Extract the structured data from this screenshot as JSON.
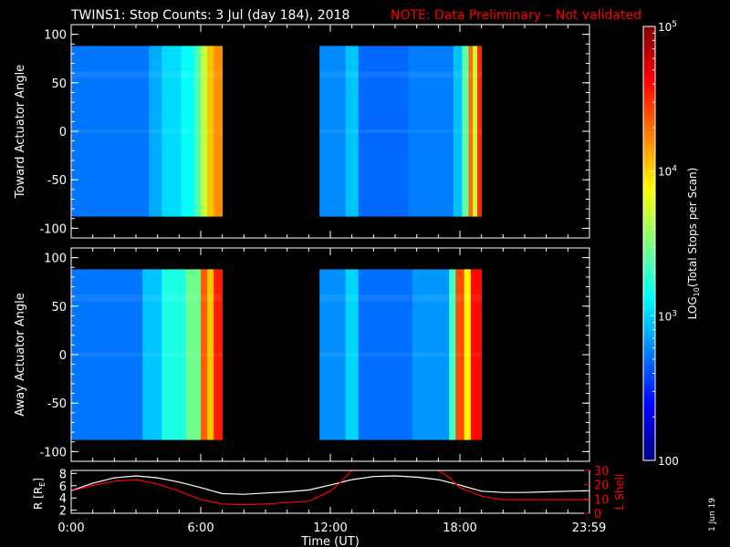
{
  "header": {
    "title": "TWINS1: Stop Counts:  3 Jul (day 184), 2018",
    "note": "NOTE: Data Preliminary – Not validated"
  },
  "side_stamp": "1 Jun 19",
  "colors": {
    "background": "#000000",
    "axis": "#ffffff",
    "note": "#ff0000",
    "l_shell": "#ff0000",
    "radius": "#ffffff"
  },
  "chart_data": [
    {
      "type": "heatmap",
      "ylabel": "Toward Actuator Angle",
      "xlim": [
        0,
        24
      ],
      "ylim": [
        -110,
        110
      ],
      "data_extent_y": [
        -88,
        88
      ],
      "yticks": [
        -100,
        -50,
        0,
        50,
        100
      ],
      "segments": [
        {
          "start": 0.0,
          "end": 7.0
        },
        {
          "start": 11.5,
          "end": 19.0
        }
      ],
      "stripes": [
        {
          "t0": 0.0,
          "t1": 3.6,
          "level": 2.72
        },
        {
          "t0": 3.6,
          "t1": 4.2,
          "level": 2.88
        },
        {
          "t0": 4.2,
          "t1": 5.1,
          "level": 3.02
        },
        {
          "t0": 5.1,
          "t1": 5.7,
          "level": 3.14
        },
        {
          "t0": 5.7,
          "t1": 6.0,
          "level": 3.35
        },
        {
          "t0": 6.0,
          "t1": 6.3,
          "level": 3.7
        },
        {
          "t0": 6.3,
          "t1": 6.6,
          "level": 4.05
        },
        {
          "t0": 6.6,
          "t1": 7.0,
          "level": 4.2
        },
        {
          "t0": 11.5,
          "t1": 12.7,
          "level": 2.78
        },
        {
          "t0": 12.7,
          "t1": 13.3,
          "level": 2.95
        },
        {
          "t0": 13.3,
          "t1": 15.6,
          "level": 2.68
        },
        {
          "t0": 15.6,
          "t1": 17.7,
          "level": 2.74
        },
        {
          "t0": 17.7,
          "t1": 18.1,
          "level": 2.95
        },
        {
          "t0": 18.1,
          "t1": 18.4,
          "level": 3.4
        },
        {
          "t0": 18.4,
          "t1": 18.6,
          "level": 4.3
        },
        {
          "t0": 18.6,
          "t1": 18.8,
          "level": 3.7
        },
        {
          "t0": 18.8,
          "t1": 19.0,
          "level": 4.5
        }
      ]
    },
    {
      "type": "heatmap",
      "ylabel": "Away Actuator Angle",
      "xlim": [
        0,
        24
      ],
      "ylim": [
        -110,
        110
      ],
      "data_extent_y": [
        -88,
        88
      ],
      "yticks": [
        -100,
        -50,
        0,
        50,
        100
      ],
      "segments": [
        {
          "start": 0.0,
          "end": 7.0
        },
        {
          "start": 11.5,
          "end": 19.0
        }
      ],
      "stripes": [
        {
          "t0": 0.0,
          "t1": 3.3,
          "level": 2.72
        },
        {
          "t0": 3.3,
          "t1": 4.2,
          "level": 2.95
        },
        {
          "t0": 4.2,
          "t1": 5.3,
          "level": 3.2
        },
        {
          "t0": 5.3,
          "t1": 6.0,
          "level": 3.45
        },
        {
          "t0": 6.0,
          "t1": 6.3,
          "level": 4.35
        },
        {
          "t0": 6.3,
          "t1": 6.6,
          "level": 4.05
        },
        {
          "t0": 6.6,
          "t1": 7.0,
          "level": 4.55
        },
        {
          "t0": 11.5,
          "t1": 12.7,
          "level": 2.8
        },
        {
          "t0": 12.7,
          "t1": 13.3,
          "level": 3.0
        },
        {
          "t0": 13.3,
          "t1": 15.8,
          "level": 2.7
        },
        {
          "t0": 15.8,
          "t1": 17.5,
          "level": 2.82
        },
        {
          "t0": 17.5,
          "t1": 17.8,
          "level": 3.3
        },
        {
          "t0": 17.8,
          "t1": 18.2,
          "level": 4.4
        },
        {
          "t0": 18.2,
          "t1": 18.5,
          "level": 3.9
        },
        {
          "t0": 18.5,
          "t1": 19.0,
          "level": 4.6
        }
      ]
    },
    {
      "type": "line",
      "xlabel": "Time (UT)",
      "xlim": [
        0,
        24
      ],
      "xticks": [
        0,
        6,
        12,
        18,
        23.98
      ],
      "xticklabels": [
        "0:00",
        "6:00",
        "12:00",
        "18:00",
        "23:59"
      ],
      "left_axis": {
        "label": "R [R",
        "label_subscript": "E",
        "label_suffix": "]",
        "ylim": [
          1.5,
          8.5
        ],
        "yticks": [
          2,
          4,
          6,
          8
        ]
      },
      "right_axis": {
        "label": "L Shell",
        "ylim": [
          0,
          30
        ],
        "yticks": [
          0,
          10,
          20,
          30
        ]
      },
      "series": [
        {
          "axis": "left",
          "x": [
            0,
            1,
            2,
            3,
            4,
            5,
            6,
            7,
            8,
            9,
            10,
            11,
            12,
            13,
            14,
            15,
            16,
            17,
            18,
            19,
            20,
            21,
            22,
            23,
            24
          ],
          "y": [
            5.2,
            6.4,
            7.3,
            7.6,
            7.3,
            6.6,
            5.7,
            4.7,
            4.6,
            4.8,
            5.0,
            5.3,
            6.1,
            7.0,
            7.5,
            7.6,
            7.4,
            7.0,
            6.1,
            5.1,
            4.9,
            4.9,
            5.0,
            5.1,
            5.2
          ]
        },
        {
          "axis": "right",
          "x": [
            0,
            1,
            2,
            3,
            4,
            5,
            6,
            6.5,
            7,
            8,
            9,
            10,
            11,
            12,
            12.5,
            13,
            13.5,
            17,
            17.5,
            18,
            19,
            20,
            21,
            22,
            23,
            24
          ],
          "y": [
            15.5,
            19.5,
            22.5,
            23.5,
            20.5,
            15.5,
            9.5,
            8,
            6.5,
            6,
            6.5,
            7.5,
            8.5,
            15.5,
            22,
            30,
            30,
            30,
            25,
            18,
            12,
            9.5,
            9.5,
            9.5,
            9.5,
            9.5
          ]
        }
      ]
    },
    {
      "type": "colorbar",
      "label_prefix": "LOG",
      "label_sub": "10",
      "label_suffix": "(Total Stops per Scan)",
      "range": [
        2,
        5
      ],
      "ticks": [
        {
          "value": 2,
          "base": "100",
          "exp": ""
        },
        {
          "value": 3,
          "base": "10",
          "exp": "3"
        },
        {
          "value": 4,
          "base": "10",
          "exp": "4"
        },
        {
          "value": 5,
          "base": "10",
          "exp": "5"
        }
      ]
    }
  ]
}
